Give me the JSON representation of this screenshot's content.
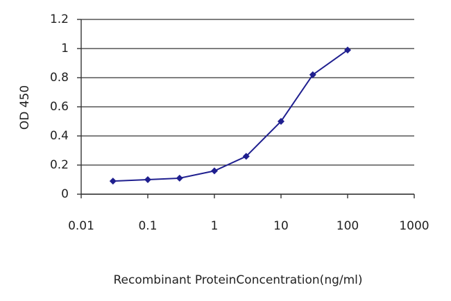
{
  "chart_data": {
    "type": "line",
    "x_label": "Recombinant ProteinConcentration(ng/ml)",
    "y_label": "OD 450",
    "x": [
      0.03,
      0.1,
      0.3,
      1,
      3,
      10,
      30,
      100
    ],
    "series": [
      {
        "color": "#1f1f8f",
        "values": [
          0.09,
          0.1,
          0.11,
          0.16,
          0.26,
          0.5,
          0.82,
          0.99
        ]
      }
    ],
    "xscale": "log",
    "xlim": [
      0.01,
      1000
    ],
    "xticks": [
      0.01,
      0.1,
      1,
      10,
      100,
      1000
    ],
    "ylim": [
      0,
      1.2
    ],
    "yticks": [
      0,
      0.2,
      0.4,
      0.6,
      0.8,
      1,
      1.2
    ],
    "grid": true
  }
}
